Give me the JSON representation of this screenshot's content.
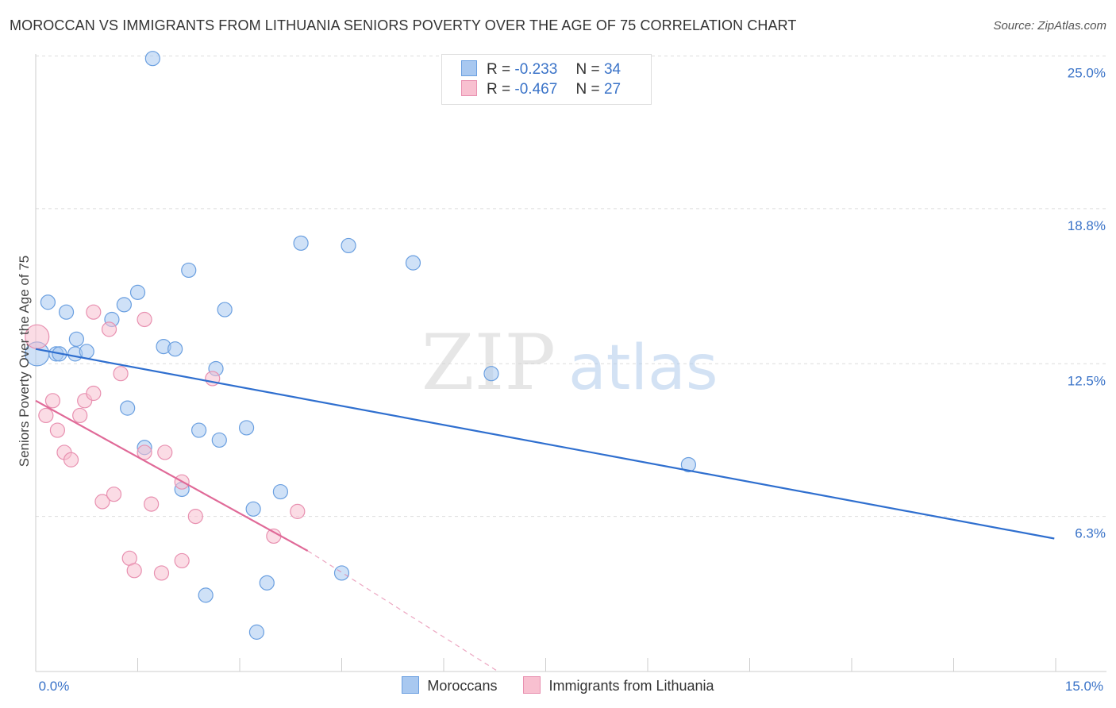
{
  "header": {
    "title": "MOROCCAN VS IMMIGRANTS FROM LITHUANIA SENIORS POVERTY OVER THE AGE OF 75 CORRELATION CHART",
    "source": "Source: ZipAtlas.com"
  },
  "watermark": {
    "zip": "ZIP",
    "atlas": "atlas"
  },
  "legend": {
    "r_label": "R =",
    "n_label": "N =",
    "rows": [
      {
        "r": "-0.233",
        "n": "34",
        "color": "#a8c8f0",
        "border": "#6a9fe0"
      },
      {
        "r": "-0.467",
        "n": "27",
        "color": "#f8c0d0",
        "border": "#e890b0"
      }
    ]
  },
  "bottom_legend": [
    {
      "label": "Moroccans",
      "color": "#a8c8f0",
      "border": "#6a9fe0"
    },
    {
      "label": "Immigrants from Lithuania",
      "color": "#f8c0d0",
      "border": "#e890b0"
    }
  ],
  "chart_data": {
    "type": "scatter",
    "title": "MOROCCAN VS IMMIGRANTS FROM LITHUANIA SENIORS POVERTY OVER THE AGE OF 75 CORRELATION CHART",
    "xlabel": "",
    "ylabel": "Seniors Poverty Over the Age of 75",
    "xlim": [
      0,
      15
    ],
    "ylim": [
      0,
      25.6
    ],
    "x_tick_labels": [
      "0.0%",
      "15.0%"
    ],
    "y_ticks": [
      {
        "value": 25.0,
        "label": "25.0%"
      },
      {
        "value": 18.8,
        "label": "18.8%"
      },
      {
        "value": 12.5,
        "label": "12.5%"
      },
      {
        "value": 6.3,
        "label": "6.3%"
      }
    ],
    "series": [
      {
        "name": "Moroccans",
        "color": "#a8c8f0",
        "stroke": "#6a9fe0",
        "line_color": "#2f6fcf",
        "trend": {
          "x": [
            0.0,
            14.98
          ],
          "y": [
            13.1,
            5.4
          ],
          "dashed_extension": false
        },
        "points": [
          {
            "x": 0.02,
            "y": 12.9,
            "size": "large"
          },
          {
            "x": 0.18,
            "y": 15.0
          },
          {
            "x": 0.45,
            "y": 14.6
          },
          {
            "x": 0.3,
            "y": 12.9
          },
          {
            "x": 0.6,
            "y": 13.5
          },
          {
            "x": 0.58,
            "y": 12.9
          },
          {
            "x": 0.75,
            "y": 13.0
          },
          {
            "x": 1.12,
            "y": 14.3
          },
          {
            "x": 1.3,
            "y": 14.9
          },
          {
            "x": 1.5,
            "y": 15.4
          },
          {
            "x": 1.72,
            "y": 24.9
          },
          {
            "x": 1.88,
            "y": 13.2
          },
          {
            "x": 2.05,
            "y": 13.1
          },
          {
            "x": 2.25,
            "y": 16.3
          },
          {
            "x": 2.78,
            "y": 14.7
          },
          {
            "x": 2.65,
            "y": 12.3
          },
          {
            "x": 1.35,
            "y": 10.7
          },
          {
            "x": 1.6,
            "y": 9.1
          },
          {
            "x": 2.4,
            "y": 9.8
          },
          {
            "x": 2.7,
            "y": 9.4
          },
          {
            "x": 3.1,
            "y": 9.9
          },
          {
            "x": 3.9,
            "y": 17.4
          },
          {
            "x": 4.6,
            "y": 17.3
          },
          {
            "x": 5.55,
            "y": 16.6
          },
          {
            "x": 6.7,
            "y": 12.1
          },
          {
            "x": 9.6,
            "y": 8.4
          },
          {
            "x": 2.15,
            "y": 7.4
          },
          {
            "x": 3.6,
            "y": 7.3
          },
          {
            "x": 3.2,
            "y": 6.6
          },
          {
            "x": 3.4,
            "y": 3.6
          },
          {
            "x": 4.5,
            "y": 4.0
          },
          {
            "x": 2.5,
            "y": 3.1
          },
          {
            "x": 3.25,
            "y": 1.6
          },
          {
            "x": 0.35,
            "y": 12.9
          }
        ]
      },
      {
        "name": "Immigrants from Lithuania",
        "color": "#f8c0d0",
        "stroke": "#e890b0",
        "line_color": "#e06a98",
        "trend": {
          "x": [
            0.0,
            4.0
          ],
          "y": [
            11.0,
            4.9
          ],
          "dashed_extension": true,
          "dash_to": {
            "x": 6.8,
            "y": 0.0
          }
        },
        "points": [
          {
            "x": 0.02,
            "y": 13.6,
            "size": "large"
          },
          {
            "x": 0.25,
            "y": 11.0
          },
          {
            "x": 0.15,
            "y": 10.4
          },
          {
            "x": 0.32,
            "y": 9.8
          },
          {
            "x": 0.42,
            "y": 8.9
          },
          {
            "x": 0.52,
            "y": 8.6
          },
          {
            "x": 0.65,
            "y": 10.4
          },
          {
            "x": 0.72,
            "y": 11.0
          },
          {
            "x": 0.85,
            "y": 11.3
          },
          {
            "x": 0.85,
            "y": 14.6
          },
          {
            "x": 1.08,
            "y": 13.9
          },
          {
            "x": 1.25,
            "y": 12.1
          },
          {
            "x": 1.6,
            "y": 14.3
          },
          {
            "x": 1.6,
            "y": 8.9
          },
          {
            "x": 1.9,
            "y": 8.9
          },
          {
            "x": 2.6,
            "y": 11.9
          },
          {
            "x": 0.98,
            "y": 6.9
          },
          {
            "x": 1.15,
            "y": 7.2
          },
          {
            "x": 1.7,
            "y": 6.8
          },
          {
            "x": 2.15,
            "y": 7.7
          },
          {
            "x": 2.35,
            "y": 6.3
          },
          {
            "x": 3.85,
            "y": 6.5
          },
          {
            "x": 3.5,
            "y": 5.5
          },
          {
            "x": 1.38,
            "y": 4.6
          },
          {
            "x": 1.45,
            "y": 4.1
          },
          {
            "x": 1.85,
            "y": 4.0
          },
          {
            "x": 2.15,
            "y": 4.5
          }
        ]
      }
    ]
  }
}
